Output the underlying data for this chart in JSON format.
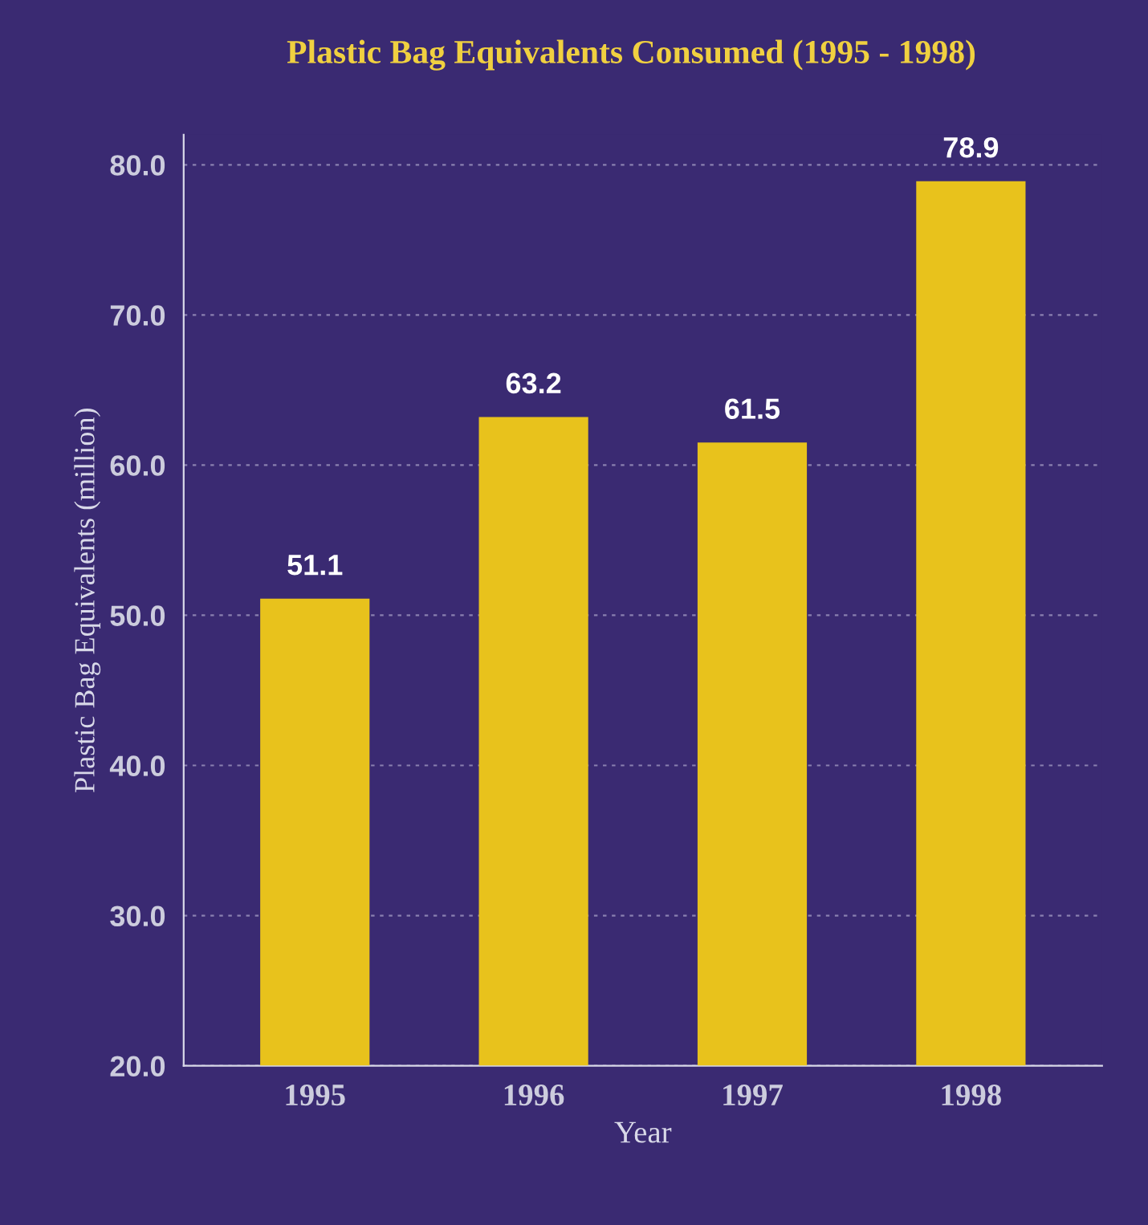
{
  "chart_data": {
    "type": "bar",
    "title": "Plastic Bag Equivalents Consumed (1995 - 1998)",
    "xlabel": "Year",
    "ylabel": "Plastic Bag Equivalents (million)",
    "categories": [
      "1995",
      "1996",
      "1997",
      "1998"
    ],
    "values": [
      51.1,
      63.2,
      61.5,
      78.9
    ],
    "color": "#e8c21c",
    "ylim": [
      20,
      82
    ],
    "yticks": [
      {
        "value": 20,
        "label": "20.0"
      },
      {
        "value": 30,
        "label": "30.0"
      },
      {
        "value": 40,
        "label": "40.0"
      },
      {
        "value": 50,
        "label": "50.0"
      },
      {
        "value": 60,
        "label": "60.0"
      },
      {
        "value": 70,
        "label": "70.0"
      },
      {
        "value": 80,
        "label": "80.0"
      }
    ],
    "grid": "y",
    "data_labels": true
  }
}
